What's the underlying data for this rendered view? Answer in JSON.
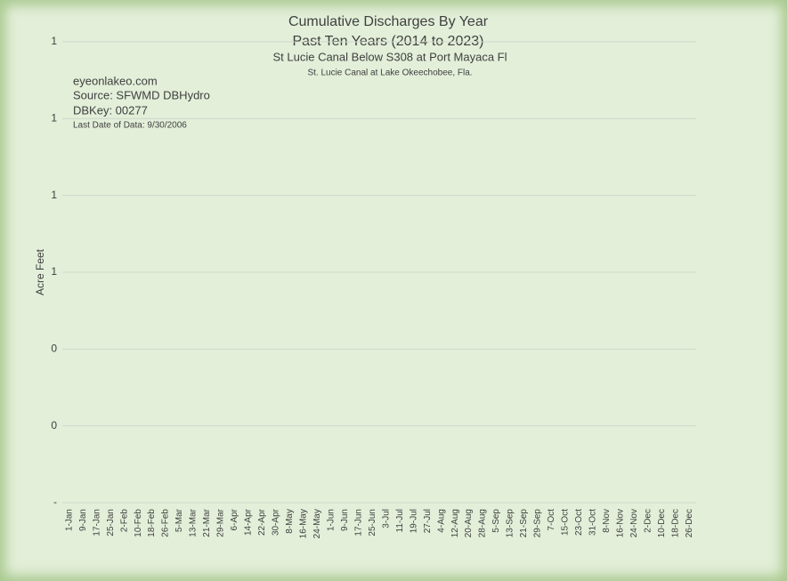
{
  "chart_data": {
    "type": "line",
    "title": "Cumulative Discharges By Year",
    "subtitles": [
      "Past Ten Years (2014 to 2023)",
      "St Lucie Canal Below S308 at Port Mayaca Fl",
      "St. Lucie Canal at Lake Okeechobee, Fla."
    ],
    "annotations": [
      "eyeonlakeo.com",
      "Source: SFWMD DBHydro",
      "DBKey: 00277",
      "Last Date of Data: 9/30/2006"
    ],
    "y_label": "Acre Feet",
    "categories": [
      "1-Jan",
      "9-Jan",
      "17-Jan",
      "25-Jan",
      "2-Feb",
      "10-Feb",
      "18-Feb",
      "26-Feb",
      "5-Mar",
      "13-Mar",
      "21-Mar",
      "29-Mar",
      "6-Apr",
      "14-Apr",
      "22-Apr",
      "30-Apr",
      "8-May",
      "16-May",
      "24-May",
      "1-Jun",
      "9-Jun",
      "17-Jun",
      "25-Jun",
      "3-Jul",
      "11-Jul",
      "19-Jul",
      "27-Jul",
      "4-Aug",
      "12-Aug",
      "20-Aug",
      "28-Aug",
      "5-Sep",
      "13-Sep",
      "21-Sep",
      "29-Sep",
      "7-Oct",
      "15-Oct",
      "23-Oct",
      "31-Oct",
      "8-Nov",
      "16-Nov",
      "24-Nov",
      "2-Dec",
      "10-Dec",
      "18-Dec",
      "26-Dec"
    ],
    "ylim": [
      0,
      1.2
    ],
    "yticks": [
      {
        "value": 0,
        "label": "-"
      },
      {
        "value": 0.2,
        "label": "0"
      },
      {
        "value": 0.4,
        "label": "0"
      },
      {
        "value": 0.6,
        "label": "1"
      },
      {
        "value": 0.8,
        "label": "1"
      },
      {
        "value": 1.0,
        "label": "1"
      },
      {
        "value": 1.2,
        "label": "1"
      }
    ],
    "grid": true
  }
}
